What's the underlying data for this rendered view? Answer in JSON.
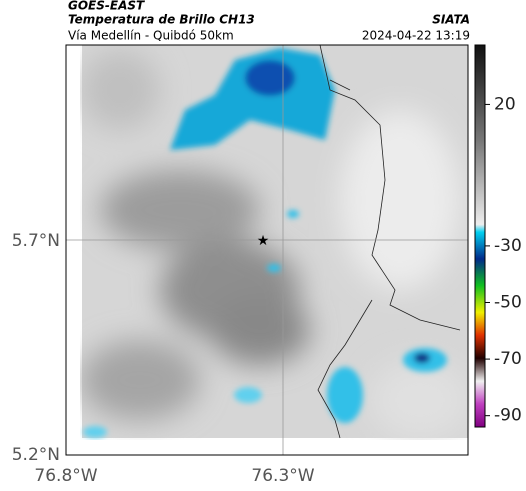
{
  "header": {
    "source": "GOES-EAST",
    "title": "Temperatura de Brillo CH13",
    "brand": "SIATA",
    "subtitle": "Vía Medellín - Quibdó 50km",
    "timestamp": "2024-04-22 13:19"
  },
  "map": {
    "lat_labels": [
      "5.7°N",
      "5.2°N"
    ],
    "lon_labels": [
      "76.8°W",
      "76.3°W"
    ]
  },
  "colorbar": {
    "lim": [
      41,
      -94
    ],
    "ticks": [
      20,
      -30,
      -50,
      -70,
      -90
    ]
  }
}
